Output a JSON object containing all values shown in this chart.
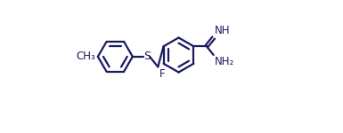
{
  "bg_color": "#ffffff",
  "line_color": "#1a1a5e",
  "line_width": 1.6,
  "font_size": 8.5,
  "figsize": [
    3.85,
    1.5
  ],
  "dpi": 100,
  "xlim": [
    0,
    11.0
  ],
  "ylim": [
    0.0,
    8.0
  ]
}
